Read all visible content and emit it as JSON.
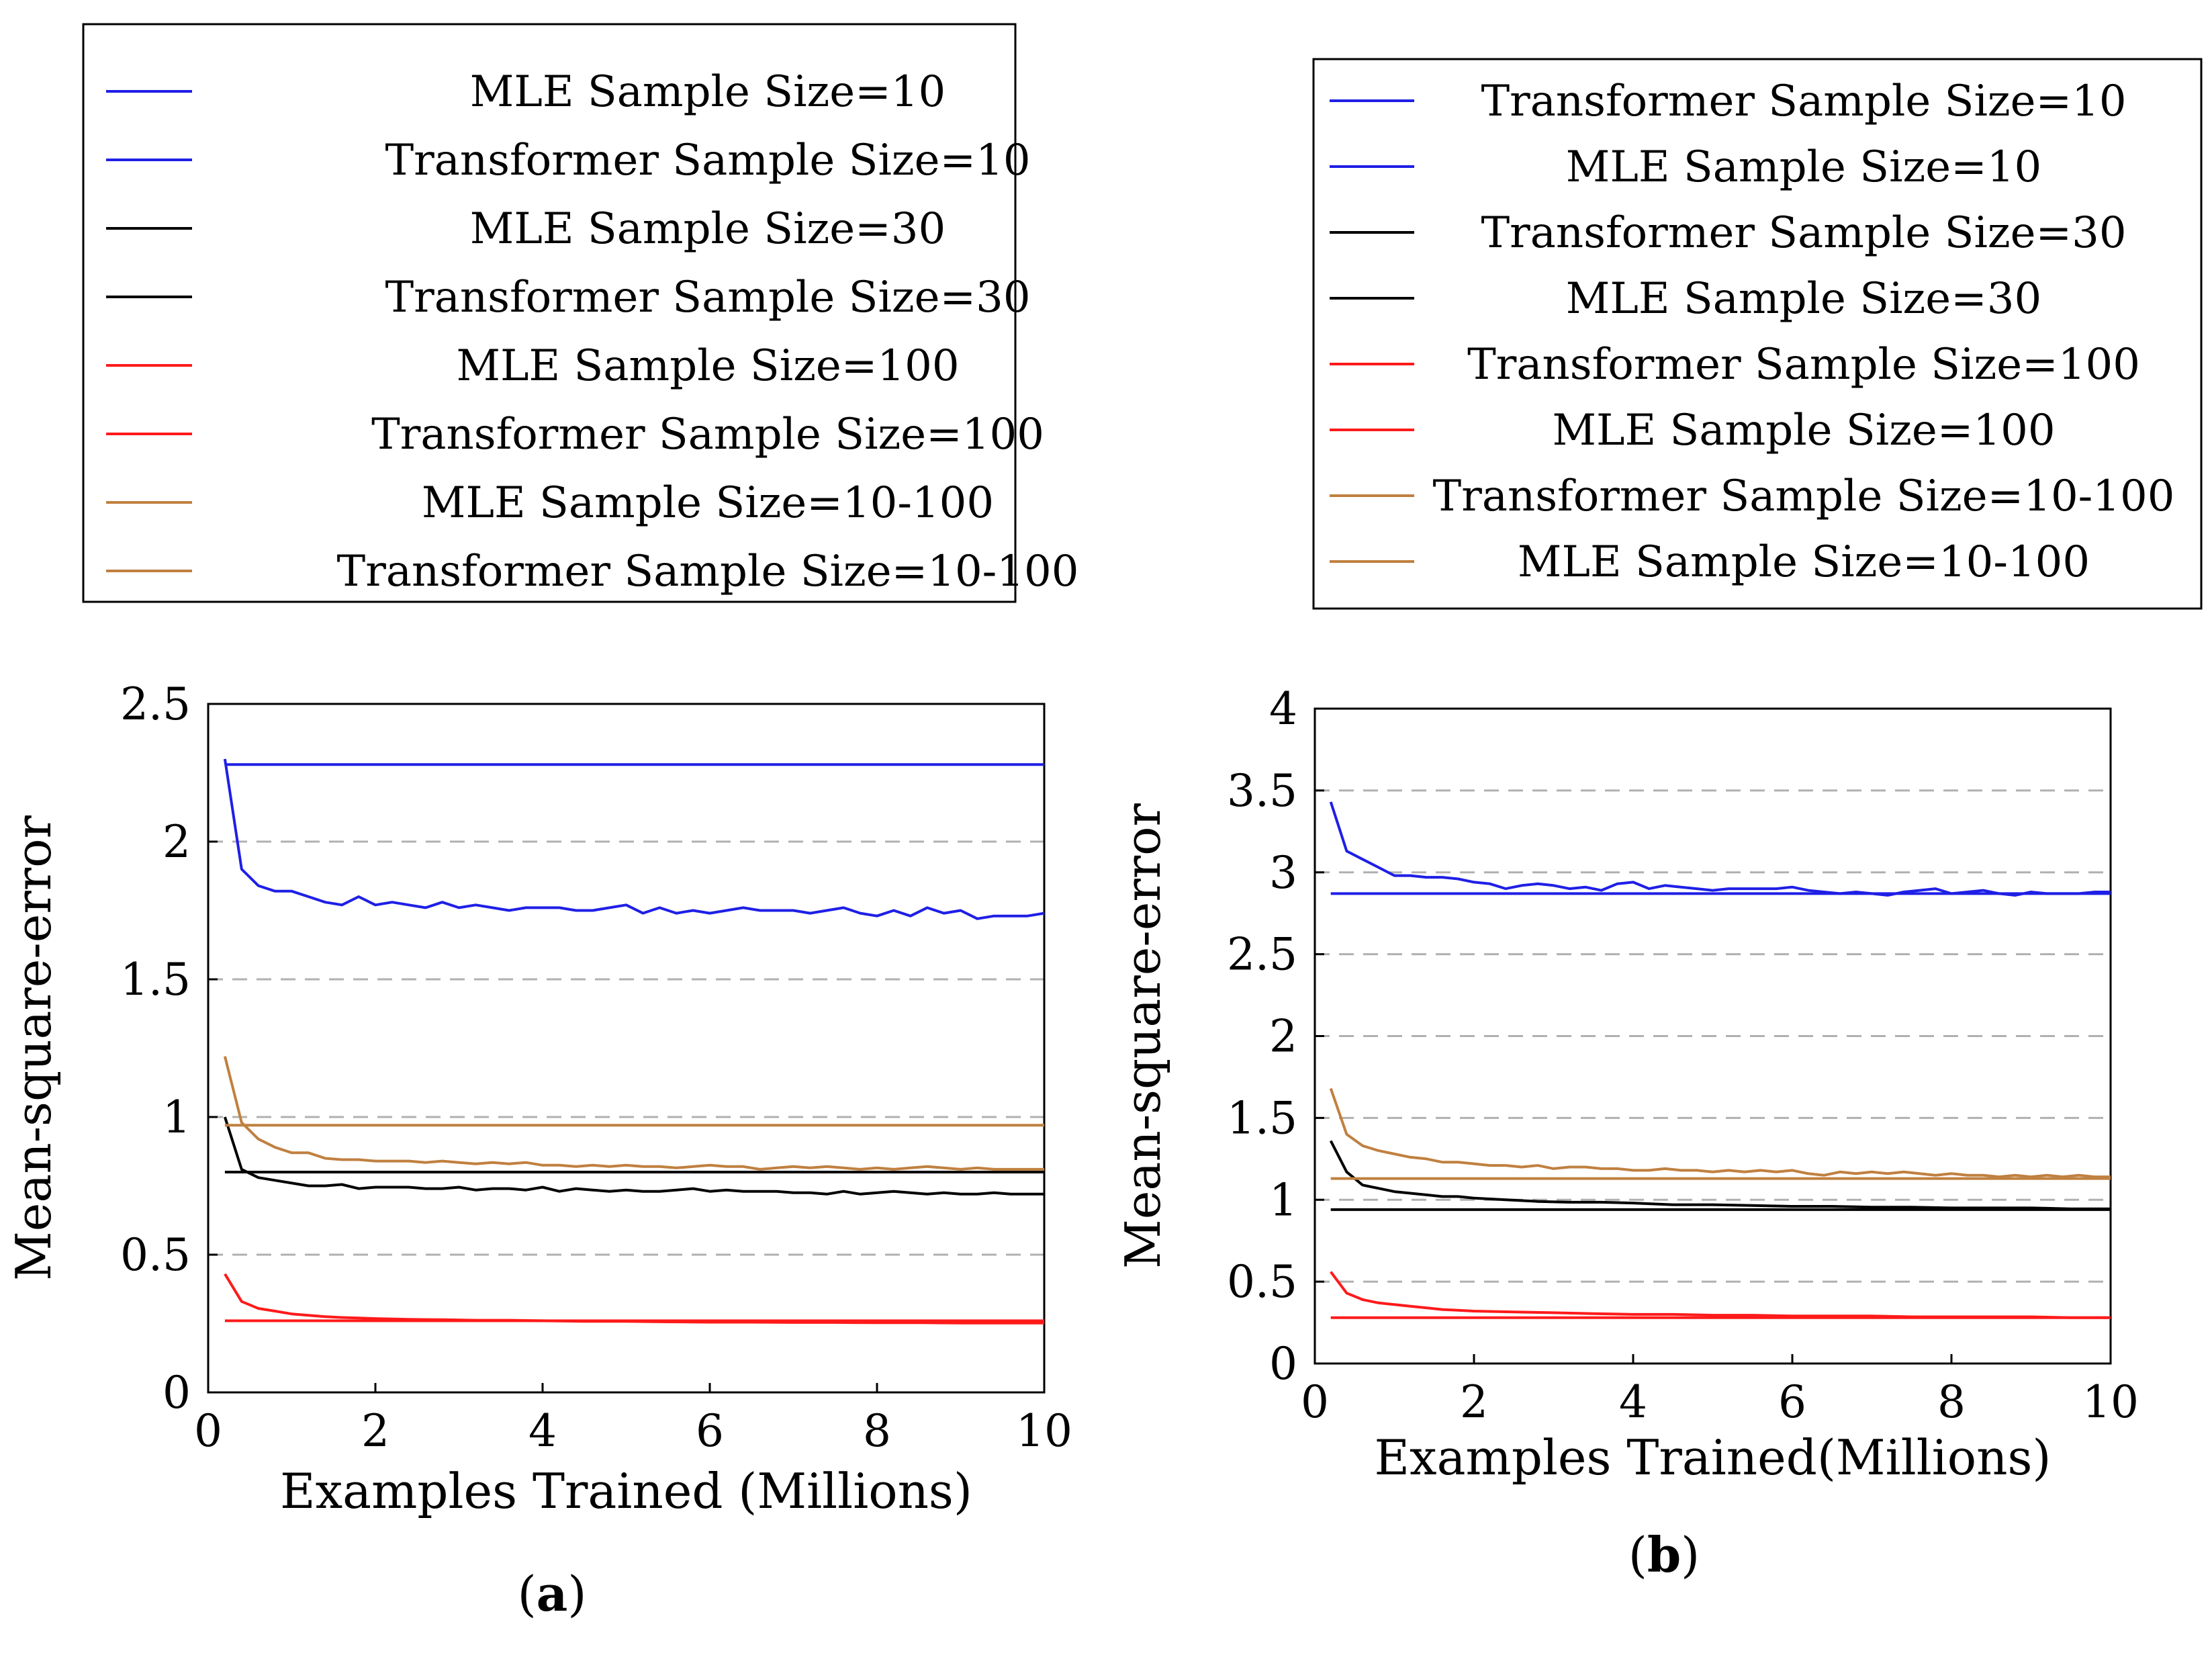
{
  "chart_data": [
    {
      "type": "line",
      "caption_label": "a",
      "xlabel": "Examples Trained (Millions)",
      "ylabel": "Mean-square-error",
      "xlim": [
        0,
        10
      ],
      "ylim": [
        0,
        2.5
      ],
      "xticks": [
        0,
        2,
        4,
        6,
        8,
        10
      ],
      "yticks": [
        0,
        0.5,
        1,
        1.5,
        2,
        2.5
      ],
      "ytick_labels": [
        "0",
        "0.5",
        "1",
        "1.5",
        "2",
        "2.5"
      ],
      "grid": "horizontal dashed",
      "legend_position": "above plot",
      "series": [
        {
          "name": "MLE Sample Size=10",
          "color": "#1f1fe6",
          "x": [
            0.2,
            10
          ],
          "y": [
            2.28,
            2.28
          ]
        },
        {
          "name": "Transformer Sample Size=10",
          "color": "#1f1fe6",
          "x": [
            0.2,
            0.4,
            0.6,
            0.8,
            1.0,
            1.2,
            1.4,
            1.6,
            1.8,
            2.0,
            2.2,
            2.4,
            2.6,
            2.8,
            3.0,
            3.2,
            3.4,
            3.6,
            3.8,
            4.0,
            4.2,
            4.4,
            4.6,
            4.8,
            5.0,
            5.2,
            5.4,
            5.6,
            5.8,
            6.0,
            6.2,
            6.4,
            6.6,
            6.8,
            7.0,
            7.2,
            7.4,
            7.6,
            7.8,
            8.0,
            8.2,
            8.4,
            8.6,
            8.8,
            9.0,
            9.2,
            9.4,
            9.6,
            9.8,
            10.0
          ],
          "y": [
            2.3,
            1.9,
            1.84,
            1.82,
            1.82,
            1.8,
            1.78,
            1.77,
            1.8,
            1.77,
            1.78,
            1.77,
            1.76,
            1.78,
            1.76,
            1.77,
            1.76,
            1.75,
            1.76,
            1.76,
            1.76,
            1.75,
            1.75,
            1.76,
            1.77,
            1.74,
            1.76,
            1.74,
            1.75,
            1.74,
            1.75,
            1.76,
            1.75,
            1.75,
            1.75,
            1.74,
            1.75,
            1.76,
            1.74,
            1.73,
            1.75,
            1.73,
            1.76,
            1.74,
            1.75,
            1.72,
            1.73,
            1.73,
            1.73,
            1.74
          ]
        },
        {
          "name": "MLE Sample Size=30",
          "color": "#000000",
          "x": [
            0.2,
            10
          ],
          "y": [
            0.8,
            0.8
          ]
        },
        {
          "name": "Transformer Sample Size=30",
          "color": "#000000",
          "x": [
            0.2,
            0.4,
            0.6,
            0.8,
            1.0,
            1.2,
            1.4,
            1.6,
            1.8,
            2.0,
            2.2,
            2.4,
            2.6,
            2.8,
            3.0,
            3.2,
            3.4,
            3.6,
            3.8,
            4.0,
            4.2,
            4.4,
            4.6,
            4.8,
            5.0,
            5.2,
            5.4,
            5.6,
            5.8,
            6.0,
            6.2,
            6.4,
            6.6,
            6.8,
            7.0,
            7.2,
            7.4,
            7.6,
            7.8,
            8.0,
            8.2,
            8.4,
            8.6,
            8.8,
            9.0,
            9.2,
            9.4,
            9.6,
            9.8,
            10.0
          ],
          "y": [
            1.0,
            0.81,
            0.78,
            0.77,
            0.76,
            0.75,
            0.75,
            0.755,
            0.74,
            0.745,
            0.745,
            0.745,
            0.74,
            0.74,
            0.745,
            0.735,
            0.74,
            0.74,
            0.735,
            0.745,
            0.73,
            0.74,
            0.735,
            0.73,
            0.735,
            0.73,
            0.73,
            0.735,
            0.74,
            0.73,
            0.735,
            0.73,
            0.73,
            0.73,
            0.725,
            0.725,
            0.72,
            0.73,
            0.72,
            0.725,
            0.73,
            0.725,
            0.72,
            0.725,
            0.72,
            0.72,
            0.725,
            0.72,
            0.72,
            0.72
          ]
        },
        {
          "name": "MLE Sample Size=100",
          "color": "#ff1a1a",
          "x": [
            0.2,
            10
          ],
          "y": [
            0.26,
            0.26
          ]
        },
        {
          "name": "Transformer Sample Size=100",
          "color": "#ff1a1a",
          "x": [
            0.2,
            0.4,
            0.6,
            0.8,
            1.0,
            1.2,
            1.4,
            1.6,
            1.8,
            2.0,
            2.4,
            2.8,
            3.2,
            3.6,
            4.0,
            4.5,
            5.0,
            5.5,
            6.0,
            6.5,
            7.0,
            7.5,
            8.0,
            8.5,
            9.0,
            9.5,
            10.0
          ],
          "y": [
            0.43,
            0.33,
            0.305,
            0.295,
            0.285,
            0.28,
            0.275,
            0.272,
            0.27,
            0.268,
            0.265,
            0.264,
            0.262,
            0.262,
            0.26,
            0.258,
            0.258,
            0.256,
            0.255,
            0.255,
            0.254,
            0.254,
            0.253,
            0.253,
            0.252,
            0.252,
            0.252
          ]
        },
        {
          "name": "MLE Sample Size=10-100",
          "color": "#c08040",
          "x": [
            0.2,
            10
          ],
          "y": [
            0.97,
            0.97
          ]
        },
        {
          "name": "Transformer Sample Size=10-100",
          "color": "#c08040",
          "x": [
            0.2,
            0.4,
            0.6,
            0.8,
            1.0,
            1.2,
            1.4,
            1.6,
            1.8,
            2.0,
            2.2,
            2.4,
            2.6,
            2.8,
            3.0,
            3.2,
            3.4,
            3.6,
            3.8,
            4.0,
            4.2,
            4.4,
            4.6,
            4.8,
            5.0,
            5.2,
            5.4,
            5.6,
            5.8,
            6.0,
            6.2,
            6.4,
            6.6,
            6.8,
            7.0,
            7.2,
            7.4,
            7.6,
            7.8,
            8.0,
            8.2,
            8.4,
            8.6,
            8.8,
            9.0,
            9.2,
            9.4,
            9.6,
            9.8,
            10.0
          ],
          "y": [
            1.22,
            0.98,
            0.92,
            0.89,
            0.87,
            0.87,
            0.85,
            0.845,
            0.845,
            0.84,
            0.84,
            0.84,
            0.835,
            0.84,
            0.835,
            0.83,
            0.835,
            0.83,
            0.835,
            0.825,
            0.825,
            0.82,
            0.825,
            0.82,
            0.825,
            0.82,
            0.82,
            0.815,
            0.82,
            0.825,
            0.82,
            0.82,
            0.81,
            0.815,
            0.82,
            0.815,
            0.82,
            0.815,
            0.81,
            0.815,
            0.81,
            0.815,
            0.82,
            0.815,
            0.81,
            0.815,
            0.81,
            0.81,
            0.81,
            0.81
          ]
        }
      ]
    },
    {
      "type": "line",
      "caption_label": "b",
      "xlabel": "Examples Trained(Millions)",
      "ylabel": "Mean-square-error",
      "xlim": [
        0,
        10
      ],
      "ylim": [
        0,
        4
      ],
      "xticks": [
        0,
        2,
        4,
        6,
        8,
        10
      ],
      "yticks": [
        0,
        0.5,
        1,
        1.5,
        2,
        2.5,
        3,
        3.5,
        4
      ],
      "ytick_labels": [
        "0",
        "0.5",
        "1",
        "1.5",
        "2",
        "2.5",
        "3",
        "3.5",
        "4"
      ],
      "grid": "horizontal dashed",
      "legend_position": "above plot",
      "series": [
        {
          "name": "Transformer Sample Size=10",
          "color": "#1f1fe6",
          "x": [
            0.2,
            0.4,
            0.6,
            0.8,
            1.0,
            1.2,
            1.4,
            1.6,
            1.8,
            2.0,
            2.2,
            2.4,
            2.6,
            2.8,
            3.0,
            3.2,
            3.4,
            3.6,
            3.8,
            4.0,
            4.2,
            4.4,
            4.6,
            4.8,
            5.0,
            5.2,
            5.4,
            5.6,
            5.8,
            6.0,
            6.2,
            6.4,
            6.6,
            6.8,
            7.0,
            7.2,
            7.4,
            7.6,
            7.8,
            8.0,
            8.2,
            8.4,
            8.6,
            8.8,
            9.0,
            9.2,
            9.4,
            9.6,
            9.8,
            10.0
          ],
          "y": [
            3.43,
            3.13,
            3.08,
            3.03,
            2.98,
            2.98,
            2.97,
            2.97,
            2.96,
            2.94,
            2.93,
            2.9,
            2.92,
            2.93,
            2.92,
            2.9,
            2.91,
            2.89,
            2.93,
            2.94,
            2.9,
            2.92,
            2.91,
            2.9,
            2.89,
            2.9,
            2.9,
            2.9,
            2.9,
            2.91,
            2.89,
            2.88,
            2.87,
            2.88,
            2.87,
            2.86,
            2.88,
            2.89,
            2.9,
            2.87,
            2.88,
            2.89,
            2.87,
            2.86,
            2.88,
            2.87,
            2.87,
            2.87,
            2.88,
            2.88
          ]
        },
        {
          "name": "MLE Sample Size=10",
          "color": "#1f1fe6",
          "x": [
            0.2,
            10
          ],
          "y": [
            2.87,
            2.87
          ]
        },
        {
          "name": "Transformer Sample Size=30",
          "color": "#000000",
          "x": [
            0.2,
            0.4,
            0.6,
            0.8,
            1.0,
            1.2,
            1.4,
            1.6,
            1.8,
            2.0,
            2.4,
            2.8,
            3.2,
            3.6,
            4.0,
            4.5,
            5.0,
            5.5,
            6.0,
            6.5,
            7.0,
            7.5,
            8.0,
            8.5,
            9.0,
            9.5,
            10.0
          ],
          "y": [
            1.36,
            1.17,
            1.09,
            1.07,
            1.05,
            1.04,
            1.03,
            1.02,
            1.02,
            1.01,
            1.0,
            0.99,
            0.985,
            0.985,
            0.98,
            0.97,
            0.97,
            0.965,
            0.96,
            0.96,
            0.955,
            0.955,
            0.95,
            0.95,
            0.95,
            0.945,
            0.945
          ]
        },
        {
          "name": "MLE Sample Size=30",
          "color": "#000000",
          "x": [
            0.2,
            10
          ],
          "y": [
            0.94,
            0.94
          ]
        },
        {
          "name": "Transformer Sample Size=100",
          "color": "#ff1a1a",
          "x": [
            0.2,
            0.4,
            0.6,
            0.8,
            1.0,
            1.2,
            1.4,
            1.6,
            1.8,
            2.0,
            2.5,
            3.0,
            3.5,
            4.0,
            4.5,
            5.0,
            5.5,
            6.0,
            6.5,
            7.0,
            7.5,
            8.0,
            8.5,
            9.0,
            9.5,
            10.0
          ],
          "y": [
            0.56,
            0.43,
            0.39,
            0.37,
            0.36,
            0.35,
            0.34,
            0.33,
            0.325,
            0.32,
            0.315,
            0.31,
            0.305,
            0.3,
            0.3,
            0.295,
            0.295,
            0.29,
            0.29,
            0.29,
            0.285,
            0.285,
            0.285,
            0.285,
            0.28,
            0.28
          ]
        },
        {
          "name": "MLE Sample Size=100",
          "color": "#ff1a1a",
          "x": [
            0.2,
            10
          ],
          "y": [
            0.28,
            0.28
          ]
        },
        {
          "name": "Transformer Sample Size=10-100",
          "color": "#c08040",
          "x": [
            0.2,
            0.4,
            0.6,
            0.8,
            1.0,
            1.2,
            1.4,
            1.6,
            1.8,
            2.0,
            2.2,
            2.4,
            2.6,
            2.8,
            3.0,
            3.2,
            3.4,
            3.6,
            3.8,
            4.0,
            4.2,
            4.4,
            4.6,
            4.8,
            5.0,
            5.2,
            5.4,
            5.6,
            5.8,
            6.0,
            6.2,
            6.4,
            6.6,
            6.8,
            7.0,
            7.2,
            7.4,
            7.6,
            7.8,
            8.0,
            8.2,
            8.4,
            8.6,
            8.8,
            9.0,
            9.2,
            9.4,
            9.6,
            9.8,
            10.0
          ],
          "y": [
            1.68,
            1.4,
            1.33,
            1.3,
            1.28,
            1.26,
            1.25,
            1.23,
            1.23,
            1.22,
            1.21,
            1.21,
            1.2,
            1.21,
            1.19,
            1.2,
            1.2,
            1.19,
            1.19,
            1.18,
            1.18,
            1.19,
            1.18,
            1.18,
            1.17,
            1.18,
            1.17,
            1.18,
            1.17,
            1.18,
            1.16,
            1.15,
            1.17,
            1.16,
            1.17,
            1.16,
            1.17,
            1.16,
            1.15,
            1.16,
            1.15,
            1.15,
            1.14,
            1.15,
            1.14,
            1.15,
            1.14,
            1.15,
            1.14,
            1.14
          ]
        },
        {
          "name": "MLE Sample Size=10-100",
          "color": "#c08040",
          "x": [
            0.2,
            10
          ],
          "y": [
            1.13,
            1.13
          ]
        }
      ]
    }
  ]
}
